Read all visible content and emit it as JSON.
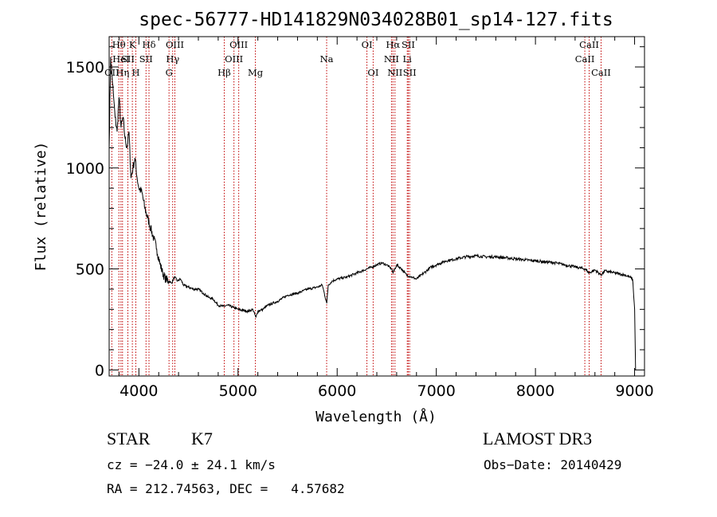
{
  "chart_data": {
    "type": "line",
    "title": "spec-56777-HD141829N034028B01_sp14-127.fits",
    "xlabel": "Wavelength (Å)",
    "ylabel": "Flux (relative)",
    "xlim": [
      3700,
      9100
    ],
    "ylim": [
      -30,
      1650
    ],
    "x_ticks": [
      4000,
      5000,
      6000,
      7000,
      8000,
      9000
    ],
    "y_ticks": [
      0,
      500,
      1000,
      1500
    ],
    "x_tick_labels": [
      "4000",
      "5000",
      "6000",
      "7000",
      "8000",
      "9000"
    ],
    "y_tick_labels": [
      "0",
      "500",
      "1000",
      "1500"
    ],
    "line_color": "#000000",
    "marker_color": "#c00000",
    "series": [
      {
        "name": "flux",
        "x": [
          3700,
          3715,
          3730,
          3745,
          3760,
          3780,
          3800,
          3820,
          3840,
          3860,
          3880,
          3900,
          3920,
          3940,
          3960,
          3980,
          4000,
          4030,
          4060,
          4090,
          4120,
          4150,
          4180,
          4210,
          4240,
          4270,
          4300,
          4330,
          4360,
          4390,
          4420,
          4450,
          4500,
          4550,
          4600,
          4650,
          4700,
          4750,
          4800,
          4850,
          4900,
          4950,
          5000,
          5050,
          5100,
          5150,
          5180,
          5200,
          5250,
          5300,
          5400,
          5500,
          5600,
          5700,
          5800,
          5850,
          5895,
          5910,
          5950,
          6000,
          6100,
          6200,
          6300,
          6350,
          6400,
          6450,
          6500,
          6550,
          6563,
          6600,
          6650,
          6700,
          6750,
          6800,
          6850,
          6900,
          6950,
          7000,
          7050,
          7100,
          7150,
          7200,
          7250,
          7300,
          7400,
          7500,
          7600,
          7700,
          7800,
          7900,
          8000,
          8100,
          8200,
          8300,
          8400,
          8500,
          8542,
          8600,
          8662,
          8700,
          8800,
          8900,
          8950,
          8980,
          9000,
          9010
        ],
        "y": [
          1100,
          1550,
          1450,
          1350,
          1250,
          1180,
          1350,
          1200,
          1250,
          1150,
          1100,
          1180,
          950,
          1000,
          1050,
          960,
          900,
          880,
          800,
          750,
          700,
          650,
          600,
          530,
          480,
          450,
          440,
          430,
          460,
          440,
          450,
          420,
          410,
          400,
          400,
          380,
          360,
          350,
          320,
          315,
          320,
          310,
          300,
          295,
          290,
          300,
          260,
          290,
          300,
          320,
          340,
          370,
          380,
          400,
          410,
          420,
          330,
          420,
          440,
          450,
          460,
          480,
          500,
          510,
          520,
          530,
          520,
          500,
          480,
          520,
          500,
          470,
          460,
          450,
          470,
          490,
          510,
          520,
          530,
          540,
          545,
          550,
          555,
          560,
          565,
          560,
          560,
          555,
          550,
          545,
          540,
          535,
          530,
          520,
          510,
          500,
          480,
          495,
          470,
          490,
          480,
          470,
          460,
          450,
          300,
          0
        ]
      }
    ],
    "lines": [
      {
        "name": "O II",
        "wl": 3727,
        "row": 2,
        "label": "OII"
      },
      {
        "name": "H theta",
        "wl": 3798,
        "row": 0,
        "label": "Hθ"
      },
      {
        "name": "He I",
        "wl": 3819,
        "row": 1,
        "label": "HeI"
      },
      {
        "name": "H eta",
        "wl": 3835,
        "row": 2,
        "label": "Hη"
      },
      {
        "name": "Ca K",
        "wl": 3934,
        "row": 0,
        "label": "K"
      },
      {
        "name": "S II",
        "wl": 3889,
        "row": 1,
        "label": "SII"
      },
      {
        "name": "Ca H",
        "wl": 3969,
        "row": 2,
        "label": "H"
      },
      {
        "name": "H delta",
        "wl": 4102,
        "row": 0,
        "label": "Hδ"
      },
      {
        "name": "S II",
        "wl": 4072,
        "row": 1,
        "label": "SII"
      },
      {
        "name": "O III",
        "wl": 4363,
        "row": 0,
        "label": "OIII"
      },
      {
        "name": "H gamma",
        "wl": 4341,
        "row": 1,
        "label": "Hγ"
      },
      {
        "name": "G band",
        "wl": 4304,
        "row": 2,
        "label": "G"
      },
      {
        "name": "H beta",
        "wl": 4861,
        "row": 2,
        "label": "Hβ"
      },
      {
        "name": "O III",
        "wl": 5007,
        "row": 0,
        "label": "OIII"
      },
      {
        "name": "O III",
        "wl": 4959,
        "row": 1,
        "label": "OIII"
      },
      {
        "name": "Mg",
        "wl": 5175,
        "row": 2,
        "label": "Mg"
      },
      {
        "name": "Na",
        "wl": 5894,
        "row": 1,
        "label": "Na"
      },
      {
        "name": "O I",
        "wl": 6300,
        "row": 0,
        "label": "OI"
      },
      {
        "name": "O I",
        "wl": 6363,
        "row": 2,
        "label": "OI"
      },
      {
        "name": "H alpha",
        "wl": 6563,
        "row": 0,
        "label": "Hα"
      },
      {
        "name": "N II",
        "wl": 6548,
        "row": 1,
        "label": "NII"
      },
      {
        "name": "N II",
        "wl": 6583,
        "row": 2,
        "label": "NII"
      },
      {
        "name": "S II",
        "wl": 6717,
        "row": 0,
        "label": "SII"
      },
      {
        "name": "Li",
        "wl": 6707,
        "row": 1,
        "label": "Li"
      },
      {
        "name": "S II",
        "wl": 6731,
        "row": 2,
        "label": "SII"
      },
      {
        "name": "Ca II",
        "wl": 8542,
        "row": 0,
        "label": "CaII"
      },
      {
        "name": "Ca II",
        "wl": 8498,
        "row": 1,
        "label": "CaII"
      },
      {
        "name": "Ca II",
        "wl": 8662,
        "row": 2,
        "label": "CaII"
      }
    ]
  },
  "info": {
    "class": "STAR",
    "subclass": "K7",
    "survey": "LAMOST DR3",
    "redshift": "cz = −24.0 ± 24.1 km/s",
    "obs_date": "Obs−Date: 20140429",
    "coords": "RA = 212.74563, DEC =   4.57682"
  }
}
